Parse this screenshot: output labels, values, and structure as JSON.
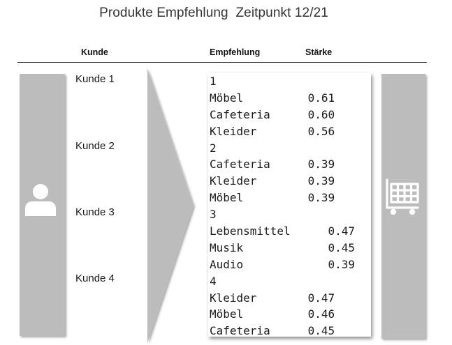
{
  "title": "Produkte Empfehlung  Zeitpunkt 12/21",
  "headers": {
    "kunde": "Kunde",
    "empfehlung": "Empfehlung",
    "staerke": "Stärke"
  },
  "customers": [
    "Kunde 1",
    "Kunde 2",
    "Kunde 3",
    "Kunde 4"
  ],
  "icons": {
    "customer": "person-icon",
    "shop": "shopping-cart-icon"
  },
  "colors": {
    "panel_gray": "#bcbcbc",
    "icon_white": "#ffffff",
    "text": "#1a1a1a"
  },
  "recommendations": [
    {
      "group": "1",
      "items": [
        {
          "product": "Möbel",
          "score": "0.61"
        },
        {
          "product": "Cafeteria",
          "score": "0.60"
        },
        {
          "product": "Kleider",
          "score": "0.56"
        }
      ]
    },
    {
      "group": "2",
      "items": [
        {
          "product": "Cafeteria",
          "score": "0.39"
        },
        {
          "product": "Kleider",
          "score": "0.39"
        },
        {
          "product": "Möbel",
          "score": "0.39"
        }
      ]
    },
    {
      "group": "3",
      "items": [
        {
          "product": "Lebensmittel",
          "score": "0.47"
        },
        {
          "product": "Musik",
          "score": "0.45"
        },
        {
          "product": "Audio",
          "score": "0.39"
        }
      ]
    },
    {
      "group": "4",
      "items": [
        {
          "product": "Kleider",
          "score": "0.47"
        },
        {
          "product": "Möbel",
          "score": "0.46"
        },
        {
          "product": "Cafeteria",
          "score": "0.45"
        }
      ]
    }
  ]
}
